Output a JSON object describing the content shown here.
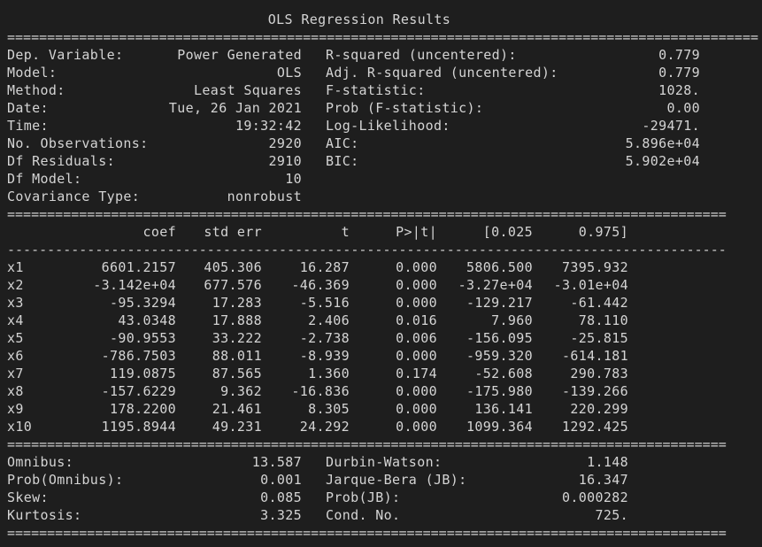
{
  "title": "OLS Regression Results",
  "separator_eq_long": "==============================================================================================",
  "separator_eq_short": "==========================================================================================",
  "separator_dash": "------------------------------------------------------------------------------------------",
  "summary_left": [
    {
      "label": "Dep. Variable:",
      "value": "Power Generated"
    },
    {
      "label": "Model:",
      "value": "OLS"
    },
    {
      "label": "Method:",
      "value": "Least Squares"
    },
    {
      "label": "Date:",
      "value": "Tue, 26 Jan 2021"
    },
    {
      "label": "Time:",
      "value": "19:32:42"
    },
    {
      "label": "No. Observations:",
      "value": "2920"
    },
    {
      "label": "Df Residuals:",
      "value": "2910"
    },
    {
      "label": "Df Model:",
      "value": "10"
    },
    {
      "label": "Covariance Type:",
      "value": "nonrobust"
    }
  ],
  "summary_right": [
    {
      "label": "R-squared (uncentered):",
      "value": "0.779"
    },
    {
      "label": "Adj. R-squared (uncentered):",
      "value": "0.779"
    },
    {
      "label": "F-statistic:",
      "value": "1028."
    },
    {
      "label": "Prob (F-statistic):",
      "value": "0.00"
    },
    {
      "label": "Log-Likelihood:",
      "value": "-29471."
    },
    {
      "label": "AIC:",
      "value": "5.896e+04"
    },
    {
      "label": "BIC:",
      "value": "5.902e+04"
    }
  ],
  "coef_headers": [
    "coef",
    "std err",
    "t",
    "P>|t|",
    "[0.025",
    "0.975]"
  ],
  "coef_rows": [
    [
      "x1",
      "6601.2157",
      "405.306",
      "16.287",
      "0.000",
      "5806.500",
      "7395.932"
    ],
    [
      "x2",
      "-3.142e+04",
      "677.576",
      "-46.369",
      "0.000",
      "-3.27e+04",
      "-3.01e+04"
    ],
    [
      "x3",
      "-95.3294",
      "17.283",
      "-5.516",
      "0.000",
      "-129.217",
      "-61.442"
    ],
    [
      "x4",
      "43.0348",
      "17.888",
      "2.406",
      "0.016",
      "7.960",
      "78.110"
    ],
    [
      "x5",
      "-90.9553",
      "33.222",
      "-2.738",
      "0.006",
      "-156.095",
      "-25.815"
    ],
    [
      "x6",
      "-786.7503",
      "88.011",
      "-8.939",
      "0.000",
      "-959.320",
      "-614.181"
    ],
    [
      "x7",
      "119.0875",
      "87.565",
      "1.360",
      "0.174",
      "-52.608",
      "290.783"
    ],
    [
      "x8",
      "-157.6229",
      "9.362",
      "-16.836",
      "0.000",
      "-175.980",
      "-139.266"
    ],
    [
      "x9",
      "178.2200",
      "21.461",
      "8.305",
      "0.000",
      "136.141",
      "220.299"
    ],
    [
      "x10",
      "1195.8944",
      "49.231",
      "24.292",
      "0.000",
      "1099.364",
      "1292.425"
    ]
  ],
  "diag_left": [
    {
      "label": "Omnibus:",
      "value": "13.587"
    },
    {
      "label": "Prob(Omnibus):",
      "value": "0.001"
    },
    {
      "label": "Skew:",
      "value": "0.085"
    },
    {
      "label": "Kurtosis:",
      "value": "3.325"
    }
  ],
  "diag_right": [
    {
      "label": "Durbin-Watson:",
      "value": "1.148"
    },
    {
      "label": "Jarque-Bera (JB):",
      "value": "16.347"
    },
    {
      "label": "Prob(JB):",
      "value": "0.000282"
    },
    {
      "label": "Cond. No.",
      "value": "725."
    }
  ],
  "colors": {
    "background": "#1e1e1e",
    "text": "#d4d4d4"
  }
}
